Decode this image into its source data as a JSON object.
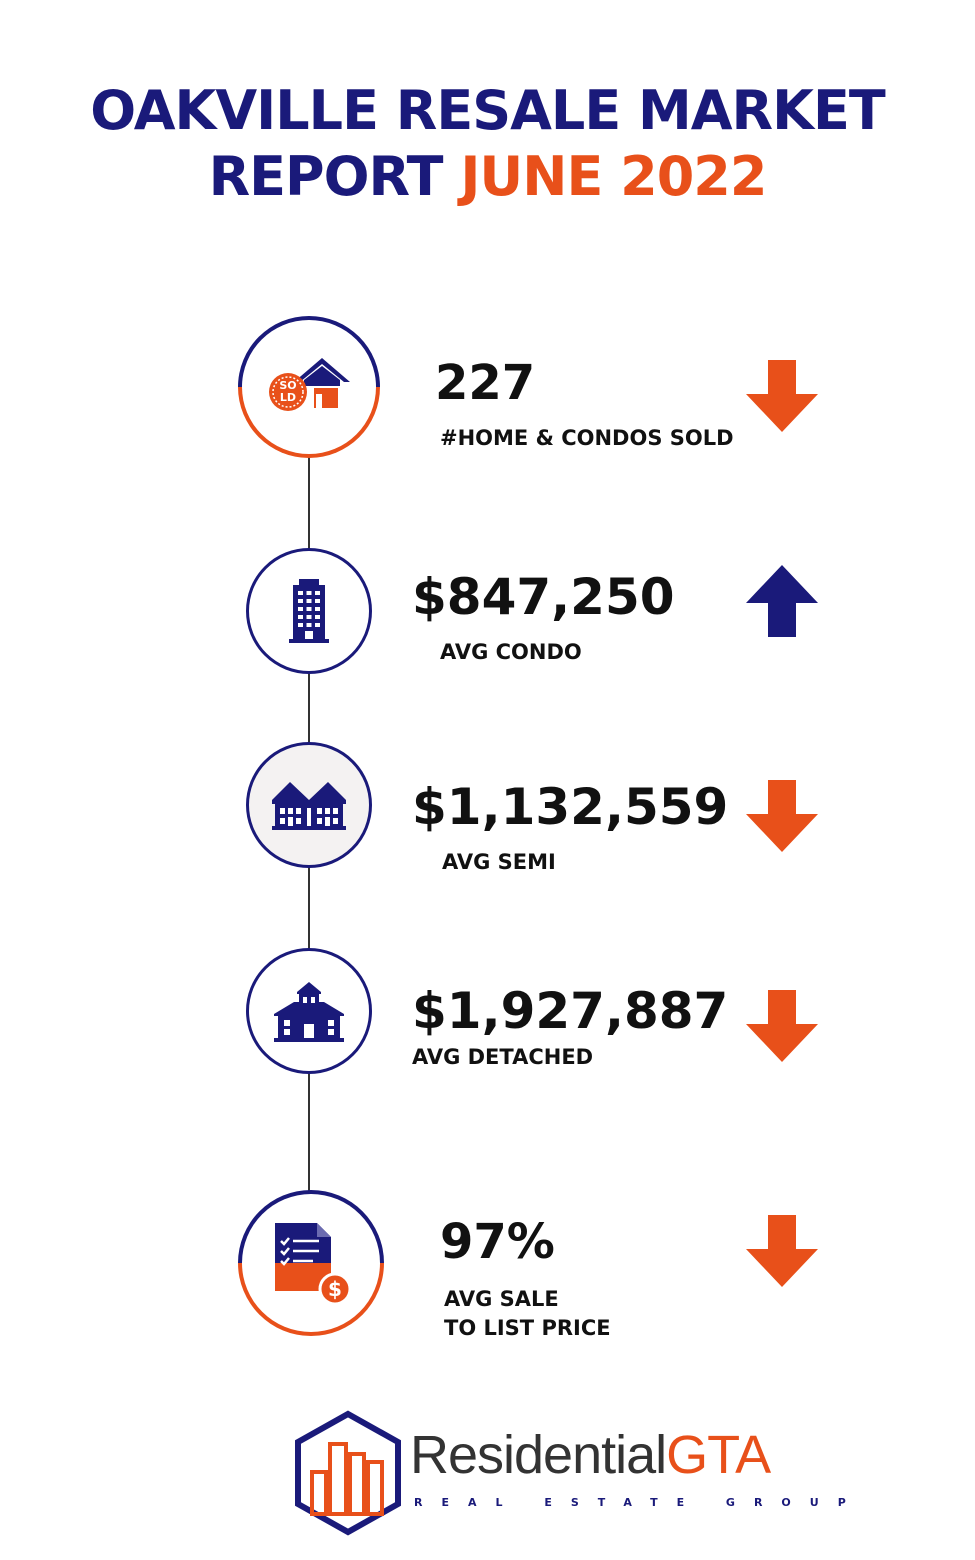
{
  "title": {
    "line1": "OAKVILLE RESALE MARKET",
    "line2_part1": "REPORT ",
    "line2_part2": "JUNE 2022"
  },
  "stats": [
    {
      "value": "227",
      "label": "#HOME & CONDOS SOLD",
      "trend": "down",
      "icon": "sold-house-icon"
    },
    {
      "value": "$847,250",
      "label": "AVG CONDO",
      "trend": "up",
      "icon": "condo-building-icon"
    },
    {
      "value": "$1,132,559",
      "label": "AVG SEMI",
      "trend": "down",
      "icon": "semi-house-icon"
    },
    {
      "value": "$1,927,887",
      "label": "AVG DETACHED",
      "trend": "down",
      "icon": "detached-house-icon"
    },
    {
      "value": "97%",
      "label_line1": "AVG SALE",
      "label_line2": "TO LIST PRICE",
      "trend": "down",
      "icon": "invoice-dollar-icon"
    }
  ],
  "logo": {
    "name_part1": "Residential",
    "name_part2": "GTA",
    "tagline": "REAL ESTATE GROUP"
  },
  "colors": {
    "navy": "#1a1a7a",
    "orange": "#e8501a"
  }
}
